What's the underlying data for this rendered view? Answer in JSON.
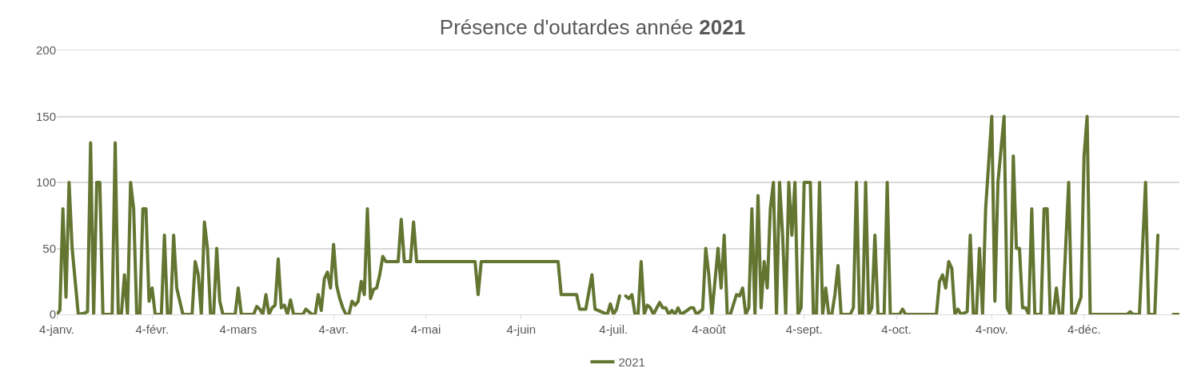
{
  "chart_data": {
    "type": "line",
    "title": "Présence d'outardes année 2021",
    "x": [
      "2021-01-04",
      "2021-01-05",
      "2021-01-06",
      "2021-01-07",
      "2021-01-08",
      "2021-01-09",
      "2021-01-11",
      "2021-01-13",
      "2021-01-14",
      "2021-01-15",
      "2021-01-16",
      "2021-01-17",
      "2021-01-18",
      "2021-01-19",
      "2021-01-22",
      "2021-01-23",
      "2021-01-24",
      "2021-01-25",
      "2021-01-26",
      "2021-01-27",
      "2021-01-28",
      "2021-01-29",
      "2021-01-30",
      "2021-01-31",
      "2021-02-01",
      "2021-02-02",
      "2021-02-03",
      "2021-02-04",
      "2021-02-05",
      "2021-02-07",
      "2021-02-08",
      "2021-02-09",
      "2021-02-10",
      "2021-02-11",
      "2021-02-12",
      "2021-02-14",
      "2021-02-17",
      "2021-02-18",
      "2021-02-19",
      "2021-02-20",
      "2021-02-21",
      "2021-02-22",
      "2021-02-23",
      "2021-02-24",
      "2021-02-25",
      "2021-02-26",
      "2021-02-27",
      "2021-03-01",
      "2021-03-03",
      "2021-03-04",
      "2021-03-05",
      "2021-03-09",
      "2021-03-10",
      "2021-03-11",
      "2021-03-12",
      "2021-03-13",
      "2021-03-14",
      "2021-03-15",
      "2021-03-16",
      "2021-03-17",
      "2021-03-18",
      "2021-03-19",
      "2021-03-20",
      "2021-03-21",
      "2021-03-22",
      "2021-03-25",
      "2021-03-26",
      "2021-03-27",
      "2021-03-28",
      "2021-03-29",
      "2021-03-30",
      "2021-03-31",
      "2021-04-01",
      "2021-04-02",
      "2021-04-03",
      "2021-04-04",
      "2021-04-05",
      "2021-04-06",
      "2021-04-07",
      "2021-04-08",
      "2021-04-09",
      "2021-04-10",
      "2021-04-11",
      "2021-04-12",
      "2021-04-13",
      "2021-04-14",
      "2021-04-15",
      "2021-04-16",
      "2021-04-17",
      "2021-04-18",
      "2021-04-19",
      "2021-04-20",
      "2021-04-21",
      "2021-04-25",
      "2021-04-26",
      "2021-04-27",
      "2021-04-29",
      "2021-04-30",
      "2021-05-01",
      "2021-05-20",
      "2021-05-21",
      "2021-05-22",
      "2021-06-16",
      "2021-06-17",
      "2021-06-22",
      "2021-06-23",
      "2021-06-25",
      "2021-06-27",
      "2021-06-28",
      "2021-06-30",
      "2021-07-02",
      "2021-07-03",
      "2021-07-04",
      "2021-07-05",
      "2021-07-06",
      "2021-07-07",
      "2021-07-08",
      "2021-07-09",
      "2021-07-10",
      "2021-07-11",
      "2021-07-12",
      "2021-07-13",
      "2021-07-14",
      "2021-07-15",
      "2021-07-16",
      "2021-07-17",
      "2021-07-19",
      "2021-07-20",
      "2021-07-21",
      "2021-07-22",
      "2021-07-23",
      "2021-07-24",
      "2021-07-25",
      "2021-07-26",
      "2021-07-28",
      "2021-07-29",
      "2021-07-30",
      "2021-07-31",
      "2021-08-02",
      "2021-08-03",
      "2021-08-04",
      "2021-08-05",
      "2021-08-07",
      "2021-08-08",
      "2021-08-09",
      "2021-08-10",
      "2021-08-11",
      "2021-08-13",
      "2021-08-14",
      "2021-08-15",
      "2021-08-16",
      "2021-08-17",
      "2021-08-18",
      "2021-08-19",
      "2021-08-20",
      "2021-08-21",
      "2021-08-22",
      "2021-08-23",
      "2021-08-24",
      "2021-08-25",
      "2021-08-26",
      "2021-08-27",
      "2021-08-28",
      "2021-08-29",
      "2021-08-30",
      "2021-08-31",
      "2021-09-01",
      "2021-09-02",
      "2021-09-03",
      "2021-09-04",
      "2021-09-05",
      "2021-09-06",
      "2021-09-07",
      "2021-09-08",
      "2021-09-09",
      "2021-09-10",
      "2021-09-11",
      "2021-09-12",
      "2021-09-13",
      "2021-09-14",
      "2021-09-15",
      "2021-09-16",
      "2021-09-19",
      "2021-09-20",
      "2021-09-21",
      "2021-09-22",
      "2021-09-23",
      "2021-09-24",
      "2021-09-25",
      "2021-09-26",
      "2021-09-27",
      "2021-09-28",
      "2021-09-29",
      "2021-09-30",
      "2021-10-01",
      "2021-10-02",
      "2021-10-05",
      "2021-10-06",
      "2021-10-07",
      "2021-10-17",
      "2021-10-18",
      "2021-10-19",
      "2021-10-20",
      "2021-10-21",
      "2021-10-22",
      "2021-10-23",
      "2021-10-24",
      "2021-10-25",
      "2021-10-27",
      "2021-10-28",
      "2021-10-29",
      "2021-10-30",
      "2021-10-31",
      "2021-11-01",
      "2021-11-02",
      "2021-11-04",
      "2021-11-05",
      "2021-11-06",
      "2021-11-08",
      "2021-11-09",
      "2021-11-10",
      "2021-11-11",
      "2021-11-12",
      "2021-11-13",
      "2021-11-14",
      "2021-11-15",
      "2021-11-16",
      "2021-11-17",
      "2021-11-18",
      "2021-11-20",
      "2021-11-21",
      "2021-11-22",
      "2021-11-23",
      "2021-11-24",
      "2021-11-25",
      "2021-11-26",
      "2021-11-27",
      "2021-11-29",
      "2021-11-30",
      "2021-12-01",
      "2021-12-03",
      "2021-12-04",
      "2021-12-05",
      "2021-12-06",
      "2021-12-18",
      "2021-12-19",
      "2021-12-20",
      "2021-12-22",
      "2021-12-24",
      "2021-12-25",
      "2021-12-27",
      "2021-12-28",
      "2021-12-30",
      "2022-01-02",
      "2022-01-04"
    ],
    "series": [
      {
        "name": "2021",
        "color": "#637531",
        "values": [
          0,
          3,
          80,
          13,
          100,
          50,
          0,
          1,
          2,
          130,
          0,
          100,
          100,
          0,
          0,
          130,
          0,
          0,
          30,
          0,
          100,
          80,
          0,
          0,
          80,
          80,
          10,
          20,
          0,
          0,
          60,
          0,
          0,
          60,
          20,
          0,
          0,
          40,
          30,
          0,
          70,
          50,
          0,
          0,
          50,
          10,
          0,
          0,
          0,
          20,
          0,
          0,
          6,
          4,
          0,
          15,
          0,
          5,
          7,
          42,
          5,
          7,
          0,
          11,
          0,
          0,
          4,
          2,
          0,
          0,
          15,
          3,
          27,
          32,
          20,
          53,
          22,
          12,
          5,
          0,
          0,
          10,
          7,
          10,
          25,
          15,
          80,
          12,
          19,
          20,
          30,
          44,
          40,
          40,
          72,
          40,
          40,
          70,
          40,
          40,
          15,
          40,
          40,
          15,
          15,
          4,
          4,
          30,
          4,
          2,
          0,
          8,
          0,
          4,
          14,
          null,
          14,
          12,
          15,
          0,
          0,
          40,
          0,
          7,
          5,
          0,
          9,
          5,
          5,
          0,
          3,
          0,
          5,
          0,
          3,
          5,
          5,
          0,
          4,
          50,
          30,
          0,
          50,
          20,
          60,
          0,
          0,
          15,
          14,
          20,
          0,
          5,
          80,
          0,
          90,
          5,
          40,
          20,
          80,
          100,
          0,
          100,
          60,
          0,
          100,
          60,
          100,
          0,
          5,
          100,
          100,
          100,
          0,
          0,
          100,
          0,
          20,
          0,
          0,
          15,
          37,
          0,
          0,
          5,
          100,
          0,
          0,
          100,
          0,
          5,
          60,
          0,
          0,
          0,
          100,
          0,
          0,
          4,
          0,
          0,
          25,
          30,
          20,
          40,
          35,
          0,
          4,
          0,
          2,
          60,
          0,
          0,
          50,
          0,
          80,
          150,
          10,
          100,
          150,
          5,
          0,
          120,
          50,
          50,
          5,
          5,
          0,
          80,
          0,
          0,
          80,
          80,
          0,
          0,
          20,
          0,
          0,
          100,
          0,
          0,
          13,
          120,
          150,
          0,
          0,
          2,
          0,
          0,
          100,
          0,
          0,
          60,
          null,
          0,
          0
        ]
      }
    ],
    "xlim": [
      "2021-01-04",
      "2022-01-04"
    ],
    "xticks": [
      {
        "value": "2021-01-04",
        "label": "4-janv."
      },
      {
        "value": "2021-02-04",
        "label": "4-févr."
      },
      {
        "value": "2021-03-04",
        "label": "4-mars"
      },
      {
        "value": "2021-04-04",
        "label": "4-avr."
      },
      {
        "value": "2021-05-04",
        "label": "4-mai"
      },
      {
        "value": "2021-06-04",
        "label": "4-juin"
      },
      {
        "value": "2021-07-04",
        "label": "4-juil."
      },
      {
        "value": "2021-08-04",
        "label": "4-août"
      },
      {
        "value": "2021-09-04",
        "label": "4-sept."
      },
      {
        "value": "2021-10-04",
        "label": "4-oct."
      },
      {
        "value": "2021-11-04",
        "label": "4-nov."
      },
      {
        "value": "2021-12-04",
        "label": "4-déc."
      }
    ],
    "ylim": [
      0,
      200
    ],
    "yticks": [
      0,
      50,
      100,
      150,
      200
    ],
    "grid": "y",
    "legend": "bottom",
    "marker": "none",
    "line_style": "solid"
  }
}
